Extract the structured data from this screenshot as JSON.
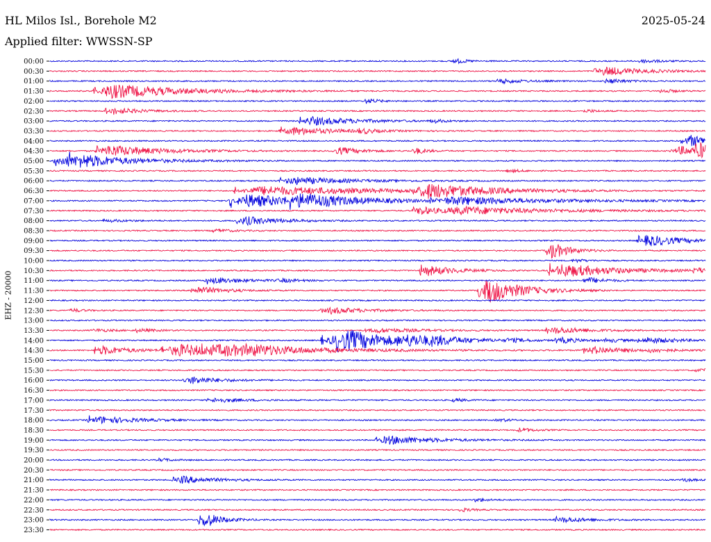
{
  "header": {
    "title": "HL Milos Isl., Borehole M2",
    "date": "2025-05-24",
    "filter": "Applied filter: WWSSN-SP"
  },
  "chart_data": {
    "type": "line",
    "title": "HL Milos Isl., Borehole M2",
    "ylabel": "EHZ - 20000",
    "colors": [
      "#0000dd",
      "#ee1144"
    ],
    "row_labels": [
      "00:00",
      "00:30",
      "01:00",
      "01:30",
      "02:00",
      "02:30",
      "03:00",
      "03:30",
      "04:00",
      "04:30",
      "05:00",
      "05:30",
      "06:00",
      "06:30",
      "07:00",
      "07:30",
      "08:00",
      "08:30",
      "09:00",
      "09:30",
      "10:00",
      "10:30",
      "11:00",
      "11:30",
      "12:00",
      "12:30",
      "13:00",
      "13:30",
      "14:00",
      "14:30",
      "15:00",
      "15:30",
      "16:00",
      "16:30",
      "17:00",
      "17:30",
      "18:00",
      "18:30",
      "19:00",
      "19:30",
      "20:00",
      "20:30",
      "21:00",
      "21:30",
      "22:00",
      "22:30",
      "23:00",
      "23:30"
    ],
    "row_minutes": 30,
    "events": [
      [
        0,
        18.5,
        2,
        0.3
      ],
      [
        0,
        27,
        3,
        0.25
      ],
      [
        1,
        25,
        7,
        0.6
      ],
      [
        2,
        20.5,
        4,
        0.3
      ],
      [
        2,
        25.5,
        3,
        0.3
      ],
      [
        3,
        2.1,
        12,
        1.0
      ],
      [
        3,
        28,
        2,
        0.25
      ],
      [
        4,
        14.5,
        2,
        0.3
      ],
      [
        5,
        2.6,
        5,
        0.45
      ],
      [
        5,
        24.5,
        2,
        0.2
      ],
      [
        6,
        11.5,
        8,
        0.6
      ],
      [
        6,
        17.5,
        2,
        0.2
      ],
      [
        7,
        10.6,
        8,
        0.55
      ],
      [
        7,
        14.2,
        2,
        0.3
      ],
      [
        8,
        29,
        5,
        0.8
      ],
      [
        9,
        2.2,
        9,
        0.8
      ],
      [
        9,
        13,
        4,
        0.5
      ],
      [
        9,
        16.7,
        2,
        0.4
      ],
      [
        9,
        28.5,
        6,
        0.6
      ],
      [
        9,
        29.6,
        3,
        0.8
      ],
      [
        10,
        0.3,
        3,
        0.7
      ],
      [
        10,
        0.9,
        10,
        0.8
      ],
      [
        11,
        21,
        2,
        0.2
      ],
      [
        12,
        10.6,
        10,
        0.5
      ],
      [
        13,
        8.5,
        22,
        0.6
      ],
      [
        13,
        16.7,
        10,
        0.95
      ],
      [
        14,
        8.3,
        12,
        0.9
      ],
      [
        14,
        11,
        10,
        0.7
      ],
      [
        14,
        17.5,
        18,
        0.5
      ],
      [
        15,
        16.7,
        4,
        0.6
      ],
      [
        15,
        18,
        16,
        0.5
      ],
      [
        16,
        8.6,
        6,
        0.6
      ],
      [
        16,
        2.5,
        4,
        0.15
      ],
      [
        17,
        7.5,
        3,
        0.2
      ],
      [
        18,
        27,
        6,
        0.8
      ],
      [
        19,
        22.8,
        3,
        1.2
      ],
      [
        20,
        24,
        2,
        0.2
      ],
      [
        21,
        17,
        5,
        0.7
      ],
      [
        21,
        22.9,
        10,
        0.9
      ],
      [
        21,
        29.5,
        3,
        0.3
      ],
      [
        22,
        7.2,
        6,
        0.4
      ],
      [
        22,
        24.5,
        3,
        0.4
      ],
      [
        22,
        10.5,
        3,
        0.2
      ],
      [
        23,
        6.5,
        5,
        0.5
      ],
      [
        23,
        19.7,
        6,
        1.8
      ],
      [
        25,
        12.5,
        6,
        0.45
      ],
      [
        25,
        1,
        2,
        0.2
      ],
      [
        27,
        2,
        3,
        0.2
      ],
      [
        27,
        4,
        3,
        0.2
      ],
      [
        27,
        14.5,
        8,
        0.3
      ],
      [
        27,
        22.8,
        6,
        0.45
      ],
      [
        28,
        12.5,
        10,
        0.7
      ],
      [
        28,
        16,
        8,
        0.5
      ],
      [
        28,
        13.2,
        8,
        0.9
      ],
      [
        28,
        17.5,
        3,
        0.3
      ],
      [
        28,
        21,
        3,
        0.2
      ],
      [
        28,
        23.2,
        4,
        0.35
      ],
      [
        28,
        27,
        6,
        0.4
      ],
      [
        28,
        25.5,
        3,
        0.2
      ],
      [
        29,
        2.1,
        5,
        0.6
      ],
      [
        29,
        5.2,
        12,
        0.8
      ],
      [
        29,
        7,
        18,
        0.45
      ],
      [
        29,
        9,
        6,
        0.25
      ],
      [
        29,
        24.5,
        6,
        0.5
      ],
      [
        29,
        27.5,
        3,
        0.2
      ],
      [
        31,
        29.6,
        4,
        0.2
      ],
      [
        32,
        6.2,
        5,
        0.5
      ],
      [
        34,
        7.3,
        5,
        0.3
      ],
      [
        34,
        18.5,
        2,
        0.2
      ],
      [
        36,
        1.8,
        7,
        0.5
      ],
      [
        36,
        20.5,
        2,
        0.2
      ],
      [
        37,
        21.5,
        2,
        0.3
      ],
      [
        38,
        15,
        8,
        0.6
      ],
      [
        40,
        5,
        2,
        0.2
      ],
      [
        42,
        5.7,
        6,
        0.5
      ],
      [
        42,
        29,
        2,
        0.2
      ],
      [
        44,
        19.5,
        2,
        0.2
      ],
      [
        45,
        18.8,
        2,
        0.2
      ],
      [
        46,
        6.9,
        3,
        1.1
      ],
      [
        46,
        23.2,
        5,
        0.35
      ]
    ]
  }
}
